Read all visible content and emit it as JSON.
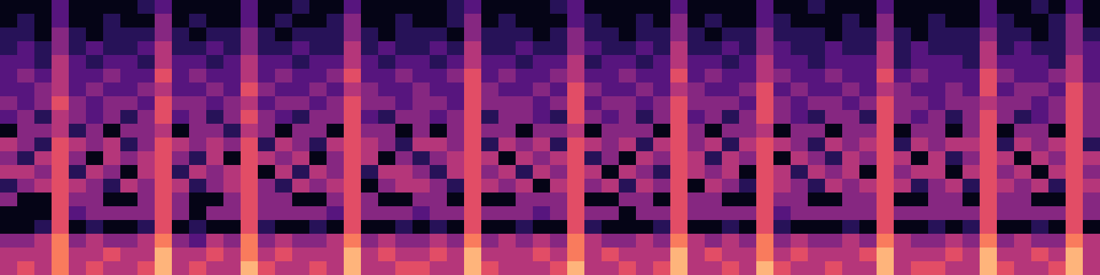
{
  "chart_data": {
    "type": "heatmap",
    "tick_labels": false,
    "cells": [
      [
        1,
        1,
        1,
        3,
        1,
        1,
        1,
        1,
        2,
        3,
        1,
        1,
        1,
        1,
        3,
        1,
        1,
        2,
        1,
        1,
        3,
        1,
        1,
        1,
        1,
        1,
        2,
        3,
        1,
        1,
        1,
        1,
        2,
        3,
        1,
        1,
        1,
        1,
        1,
        3,
        1,
        1,
        1,
        1,
        3,
        1,
        1,
        2,
        1,
        1,
        1,
        3,
        1,
        1,
        1,
        1,
        1,
        3,
        1,
        1,
        2,
        1,
        3,
        1
      ],
      [
        1,
        2,
        1,
        3,
        1,
        1,
        2,
        1,
        1,
        4,
        1,
        2,
        1,
        1,
        3,
        1,
        2,
        1,
        1,
        2,
        4,
        1,
        1,
        2,
        1,
        1,
        2,
        4,
        1,
        2,
        1,
        1,
        1,
        3,
        2,
        1,
        1,
        2,
        1,
        4,
        1,
        2,
        1,
        1,
        3,
        2,
        1,
        1,
        1,
        2,
        1,
        4,
        1,
        1,
        2,
        1,
        1,
        3,
        2,
        1,
        1,
        2,
        4,
        1
      ],
      [
        2,
        2,
        1,
        4,
        2,
        1,
        2,
        2,
        2,
        4,
        2,
        1,
        2,
        2,
        4,
        2,
        1,
        2,
        2,
        2,
        4,
        2,
        1,
        2,
        2,
        2,
        1,
        4,
        2,
        2,
        2,
        1,
        2,
        4,
        2,
        2,
        1,
        2,
        2,
        4,
        2,
        1,
        2,
        2,
        4,
        2,
        2,
        2,
        1,
        2,
        2,
        4,
        2,
        1,
        2,
        2,
        2,
        4,
        2,
        2,
        1,
        2,
        4,
        2
      ],
      [
        2,
        3,
        2,
        4,
        2,
        3,
        2,
        2,
        3,
        5,
        2,
        2,
        3,
        2,
        4,
        2,
        2,
        3,
        2,
        2,
        5,
        2,
        3,
        2,
        2,
        3,
        2,
        5,
        2,
        2,
        3,
        2,
        2,
        4,
        3,
        2,
        2,
        3,
        2,
        5,
        2,
        2,
        3,
        2,
        4,
        3,
        2,
        2,
        3,
        2,
        2,
        5,
        2,
        3,
        2,
        2,
        2,
        5,
        2,
        3,
        2,
        2,
        4,
        3
      ],
      [
        3,
        3,
        2,
        5,
        3,
        2,
        3,
        3,
        2,
        5,
        3,
        3,
        2,
        3,
        5,
        3,
        3,
        2,
        3,
        3,
        5,
        3,
        2,
        3,
        3,
        2,
        3,
        5,
        3,
        3,
        2,
        3,
        3,
        5,
        2,
        3,
        3,
        2,
        3,
        5,
        3,
        3,
        2,
        3,
        5,
        3,
        3,
        2,
        3,
        3,
        3,
        5,
        2,
        3,
        3,
        3,
        2,
        5,
        3,
        3,
        3,
        2,
        5,
        3
      ],
      [
        3,
        4,
        3,
        5,
        3,
        3,
        4,
        3,
        3,
        6,
        3,
        4,
        3,
        3,
        5,
        3,
        4,
        3,
        3,
        4,
        6,
        3,
        3,
        4,
        3,
        3,
        4,
        6,
        3,
        4,
        3,
        3,
        4,
        5,
        3,
        3,
        4,
        3,
        3,
        6,
        3,
        4,
        3,
        3,
        5,
        4,
        3,
        3,
        4,
        3,
        3,
        6,
        3,
        4,
        3,
        3,
        3,
        6,
        4,
        3,
        3,
        4,
        5,
        3
      ],
      [
        3,
        3,
        4,
        5,
        3,
        4,
        3,
        3,
        4,
        5,
        3,
        3,
        4,
        3,
        6,
        4,
        3,
        3,
        4,
        3,
        5,
        4,
        3,
        3,
        4,
        3,
        3,
        6,
        4,
        3,
        3,
        4,
        3,
        6,
        4,
        3,
        3,
        4,
        3,
        5,
        4,
        3,
        3,
        4,
        6,
        3,
        4,
        3,
        3,
        4,
        3,
        5,
        4,
        3,
        3,
        4,
        3,
        6,
        3,
        4,
        4,
        3,
        6,
        4
      ],
      [
        4,
        3,
        4,
        6,
        4,
        3,
        4,
        4,
        3,
        6,
        4,
        4,
        3,
        4,
        5,
        3,
        4,
        4,
        3,
        4,
        6,
        4,
        4,
        3,
        4,
        4,
        3,
        6,
        4,
        4,
        4,
        3,
        4,
        6,
        3,
        4,
        4,
        3,
        4,
        6,
        4,
        4,
        4,
        3,
        6,
        4,
        3,
        4,
        4,
        3,
        4,
        6,
        4,
        4,
        3,
        4,
        4,
        5,
        4,
        4,
        3,
        4,
        6,
        4
      ],
      [
        3,
        4,
        2,
        5,
        4,
        3,
        4,
        2,
        4,
        6,
        3,
        4,
        2,
        4,
        6,
        4,
        3,
        2,
        4,
        4,
        6,
        3,
        2,
        4,
        4,
        3,
        4,
        6,
        2,
        4,
        4,
        3,
        2,
        6,
        4,
        3,
        4,
        2,
        4,
        6,
        3,
        4,
        2,
        4,
        6,
        4,
        3,
        2,
        4,
        4,
        2,
        6,
        4,
        3,
        4,
        2,
        4,
        6,
        4,
        2,
        3,
        4,
        6,
        4
      ],
      [
        1,
        4,
        4,
        5,
        2,
        4,
        1,
        4,
        4,
        5,
        1,
        4,
        4,
        2,
        5,
        4,
        1,
        4,
        4,
        1,
        6,
        4,
        4,
        1,
        4,
        1,
        4,
        6,
        4,
        4,
        1,
        4,
        4,
        5,
        1,
        4,
        4,
        4,
        1,
        6,
        4,
        1,
        4,
        4,
        5,
        1,
        4,
        4,
        1,
        4,
        4,
        6,
        1,
        4,
        4,
        1,
        4,
        6,
        1,
        4,
        4,
        1,
        6,
        4
      ],
      [
        5,
        4,
        2,
        6,
        5,
        4,
        5,
        2,
        4,
        6,
        5,
        4,
        5,
        4,
        6,
        2,
        5,
        4,
        2,
        5,
        6,
        5,
        4,
        2,
        5,
        5,
        4,
        6,
        2,
        5,
        4,
        5,
        2,
        6,
        5,
        4,
        5,
        2,
        5,
        6,
        4,
        5,
        2,
        5,
        6,
        5,
        4,
        2,
        5,
        4,
        5,
        6,
        2,
        5,
        4,
        5,
        5,
        6,
        2,
        5,
        4,
        5,
        6,
        2
      ],
      [
        4,
        2,
        5,
        6,
        4,
        1,
        5,
        4,
        5,
        6,
        4,
        2,
        5,
        1,
        6,
        5,
        4,
        5,
        1,
        4,
        6,
        5,
        1,
        4,
        2,
        4,
        5,
        6,
        5,
        1,
        5,
        4,
        5,
        6,
        2,
        4,
        1,
        5,
        4,
        6,
        5,
        2,
        5,
        4,
        6,
        1,
        5,
        4,
        2,
        5,
        4,
        6,
        5,
        1,
        5,
        2,
        4,
        6,
        5,
        1,
        5,
        4,
        6,
        5
      ],
      [
        5,
        5,
        4,
        6,
        2,
        5,
        4,
        1,
        5,
        6,
        2,
        5,
        4,
        5,
        6,
        1,
        5,
        2,
        5,
        4,
        6,
        2,
        5,
        5,
        4,
        2,
        5,
        6,
        4,
        5,
        2,
        5,
        4,
        6,
        5,
        1,
        5,
        4,
        2,
        6,
        5,
        4,
        5,
        1,
        6,
        5,
        2,
        5,
        4,
        5,
        1,
        6,
        4,
        5,
        5,
        1,
        5,
        6,
        4,
        5,
        1,
        5,
        6,
        4
      ],
      [
        2,
        4,
        5,
        6,
        5,
        4,
        2,
        5,
        4,
        6,
        5,
        2,
        4,
        5,
        6,
        4,
        2,
        5,
        4,
        5,
        6,
        1,
        4,
        5,
        5,
        4,
        2,
        6,
        5,
        4,
        5,
        1,
        5,
        6,
        4,
        5,
        2,
        5,
        4,
        6,
        1,
        5,
        4,
        2,
        6,
        5,
        4,
        2,
        5,
        4,
        5,
        6,
        5,
        2,
        4,
        5,
        2,
        6,
        5,
        4,
        5,
        2,
        6,
        5
      ],
      [
        4,
        1,
        1,
        6,
        4,
        4,
        1,
        1,
        4,
        6,
        4,
        1,
        1,
        4,
        6,
        4,
        4,
        1,
        1,
        4,
        6,
        4,
        1,
        1,
        4,
        4,
        1,
        6,
        1,
        1,
        4,
        4,
        4,
        6,
        1,
        1,
        4,
        4,
        1,
        6,
        4,
        4,
        1,
        1,
        6,
        4,
        4,
        1,
        1,
        4,
        4,
        6,
        1,
        1,
        4,
        4,
        1,
        6,
        4,
        4,
        1,
        1,
        6,
        4
      ],
      [
        1,
        1,
        1,
        6,
        3,
        4,
        4,
        4,
        4,
        6,
        4,
        1,
        4,
        4,
        6,
        4,
        4,
        4,
        4,
        3,
        6,
        4,
        4,
        4,
        3,
        4,
        4,
        6,
        4,
        4,
        4,
        3,
        4,
        6,
        4,
        4,
        1,
        4,
        4,
        6,
        4,
        4,
        4,
        4,
        6,
        3,
        4,
        4,
        4,
        4,
        4,
        6,
        4,
        4,
        4,
        4,
        4,
        6,
        4,
        4,
        4,
        4,
        6,
        4
      ],
      [
        1,
        1,
        2,
        6,
        1,
        2,
        1,
        1,
        2,
        6,
        1,
        2,
        1,
        1,
        6,
        2,
        1,
        1,
        2,
        1,
        6,
        1,
        1,
        2,
        1,
        2,
        1,
        6,
        1,
        1,
        2,
        1,
        1,
        6,
        2,
        1,
        1,
        1,
        2,
        6,
        1,
        1,
        2,
        1,
        6,
        2,
        1,
        1,
        1,
        2,
        1,
        6,
        1,
        1,
        2,
        1,
        2,
        6,
        1,
        1,
        2,
        1,
        6,
        1
      ],
      [
        4,
        4,
        5,
        7,
        4,
        5,
        4,
        4,
        5,
        7,
        4,
        3,
        5,
        4,
        7,
        4,
        5,
        4,
        4,
        5,
        7,
        4,
        5,
        4,
        4,
        5,
        4,
        7,
        4,
        5,
        4,
        5,
        4,
        7,
        5,
        4,
        4,
        5,
        4,
        7,
        5,
        4,
        5,
        4,
        7,
        4,
        5,
        4,
        4,
        5,
        4,
        7,
        5,
        4,
        4,
        5,
        4,
        7,
        4,
        5,
        4,
        4,
        7,
        5
      ],
      [
        5,
        5,
        5,
        7,
        5,
        5,
        6,
        5,
        5,
        8,
        5,
        5,
        6,
        5,
        7,
        5,
        6,
        5,
        5,
        5,
        8,
        5,
        6,
        5,
        5,
        6,
        5,
        8,
        5,
        5,
        5,
        6,
        5,
        7,
        5,
        6,
        5,
        5,
        5,
        8,
        5,
        6,
        5,
        5,
        7,
        5,
        6,
        5,
        5,
        5,
        6,
        8,
        5,
        5,
        5,
        6,
        5,
        8,
        5,
        5,
        6,
        5,
        8,
        5
      ],
      [
        5,
        6,
        5,
        7,
        5,
        6,
        5,
        5,
        6,
        8,
        5,
        6,
        5,
        5,
        8,
        6,
        5,
        5,
        6,
        5,
        8,
        5,
        5,
        6,
        6,
        5,
        5,
        8,
        6,
        5,
        5,
        5,
        6,
        8,
        5,
        5,
        6,
        5,
        6,
        8,
        5,
        5,
        6,
        5,
        8,
        6,
        5,
        5,
        6,
        5,
        5,
        8,
        5,
        6,
        6,
        5,
        5,
        8,
        6,
        5,
        5,
        6,
        8,
        5
      ]
    ]
  }
}
